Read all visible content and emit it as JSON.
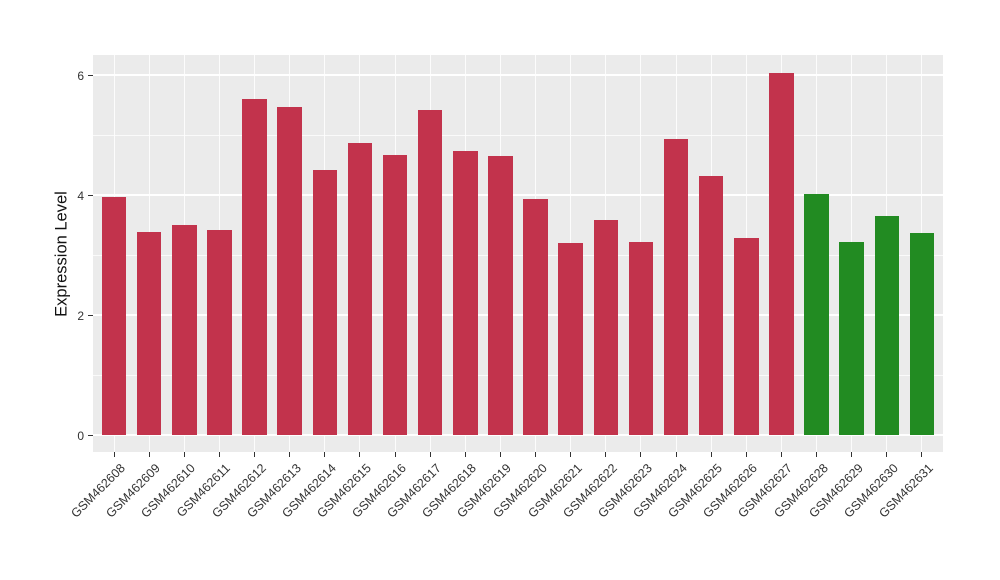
{
  "chart_data": {
    "type": "bar",
    "title": "",
    "xlabel": "",
    "ylabel": "Expression Level",
    "categories": [
      "GSM462608",
      "GSM462609",
      "GSM462610",
      "GSM462611",
      "GSM462612",
      "GSM462613",
      "GSM462614",
      "GSM462615",
      "GSM462616",
      "GSM462617",
      "GSM462618",
      "GSM462619",
      "GSM462620",
      "GSM462621",
      "GSM462622",
      "GSM462623",
      "GSM462624",
      "GSM462625",
      "GSM462626",
      "GSM462627",
      "GSM462628",
      "GSM462629",
      "GSM462630",
      "GSM462631"
    ],
    "values": [
      3.97,
      3.39,
      3.5,
      3.41,
      5.6,
      5.47,
      4.41,
      4.86,
      4.67,
      5.41,
      4.73,
      4.65,
      3.93,
      3.2,
      3.58,
      3.21,
      4.93,
      4.32,
      3.29,
      6.04,
      4.02,
      3.22,
      3.65,
      3.36
    ],
    "bar_colors": [
      "#C2334C",
      "#C2334C",
      "#C2334C",
      "#C2334C",
      "#C2334C",
      "#C2334C",
      "#C2334C",
      "#C2334C",
      "#C2334C",
      "#C2334C",
      "#C2334C",
      "#C2334C",
      "#C2334C",
      "#C2334C",
      "#C2334C",
      "#C2334C",
      "#C2334C",
      "#C2334C",
      "#C2334C",
      "#C2334C",
      "#228B22",
      "#228B22",
      "#228B22",
      "#228B22"
    ],
    "group_colors": {
      "red": "#C2334C",
      "green": "#228B22"
    },
    "y_ticks": [
      0,
      2,
      4,
      6
    ],
    "y_minor_ticks": [
      1,
      3,
      5
    ],
    "ylim": [
      0,
      6.34
    ],
    "grid": "on",
    "legend": "none",
    "panel_background": "#EBEBEB",
    "grid_color": "#FFFFFF",
    "axis_text_color": "#333333"
  }
}
